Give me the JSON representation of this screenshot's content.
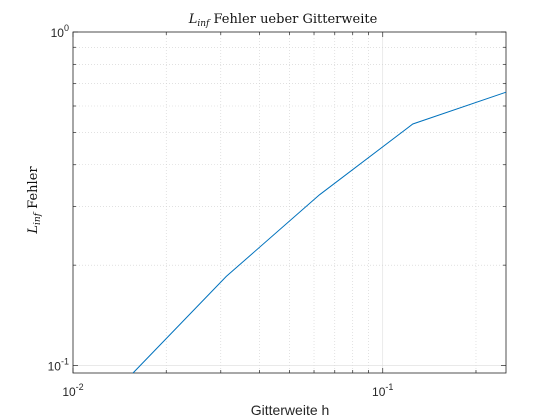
{
  "chart_data": {
    "type": "line",
    "title": "L_inf Fehler ueber Gitterweite",
    "title_parts": {
      "main": "L",
      "sub": "inf",
      "rest": " Fehler ueber Gitterweite"
    },
    "xlabel": "Gitterweite h",
    "ylabel": "L_inf Fehler",
    "ylabel_parts": {
      "main": "L",
      "sub": "inf",
      "rest": " Fehler"
    },
    "x_scale": "log",
    "y_scale": "log",
    "xlim": [
      0.01,
      0.25
    ],
    "ylim": [
      0.095,
      1.0
    ],
    "x_ticks": [
      {
        "value": 0.01,
        "base": "10",
        "exp": "-2"
      },
      {
        "value": 0.1,
        "base": "10",
        "exp": "-1"
      }
    ],
    "y_ticks": [
      {
        "value": 0.1,
        "base": "10",
        "exp": "-1"
      },
      {
        "value": 1.0,
        "base": "10",
        "exp": "0"
      }
    ],
    "grid": true,
    "minor_grid": true,
    "series": [
      {
        "color": "#0072BD",
        "x": [
          0.015625,
          0.03125,
          0.0625,
          0.125,
          0.25
        ],
        "y": [
          0.095,
          0.185,
          0.325,
          0.53,
          0.66
        ]
      }
    ]
  }
}
